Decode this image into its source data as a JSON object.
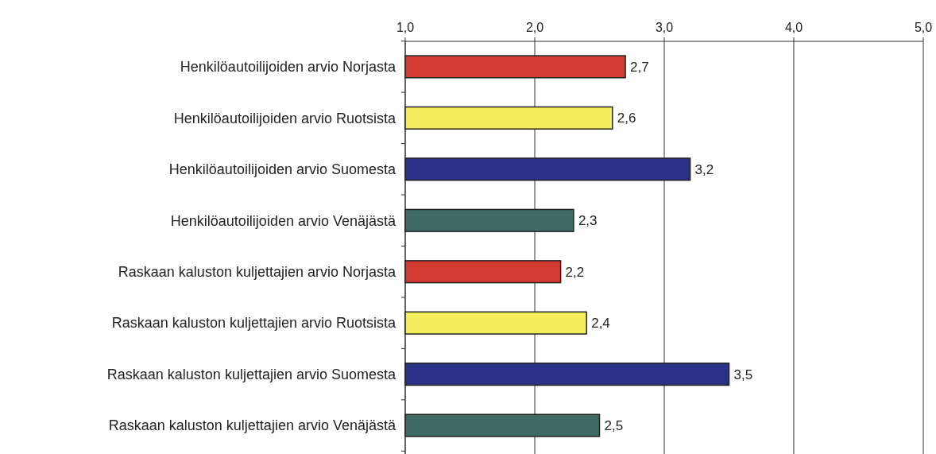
{
  "chart_data": {
    "type": "bar",
    "orientation": "horizontal",
    "categories": [
      "Henkilöautoilijoiden arvio Norjasta",
      "Henkilöautoilijoiden arvio Ruotsista",
      "Henkilöautoilijoiden arvio Suomesta",
      "Henkilöautoilijoiden arvio Venäjästä",
      "Raskaan kaluston kuljettajien arvio Norjasta",
      "Raskaan kaluston kuljettajien arvio Ruotsista",
      "Raskaan kaluston kuljettajien arvio Suomesta",
      "Raskaan kaluston kuljettajien arvio Venäjästä"
    ],
    "values": [
      2.7,
      2.6,
      3.2,
      2.3,
      2.2,
      2.4,
      3.5,
      2.5
    ],
    "value_labels": [
      "2,7",
      "2,6",
      "3,2",
      "2,3",
      "2,2",
      "2,4",
      "3,5",
      "2,5"
    ],
    "colors": [
      "#d23a32",
      "#f4ee5c",
      "#2b3285",
      "#3f6b62",
      "#d23a32",
      "#f4ee5c",
      "#2b3285",
      "#3f6b62"
    ],
    "xlim": [
      1,
      5
    ],
    "xticks": [
      {
        "value": 1,
        "label": "1,0"
      },
      {
        "value": 2,
        "label": "2,0"
      },
      {
        "value": 3,
        "label": "3,0"
      },
      {
        "value": 4,
        "label": "4,0"
      },
      {
        "value": 5,
        "label": "5,0"
      }
    ],
    "grid": "x"
  }
}
